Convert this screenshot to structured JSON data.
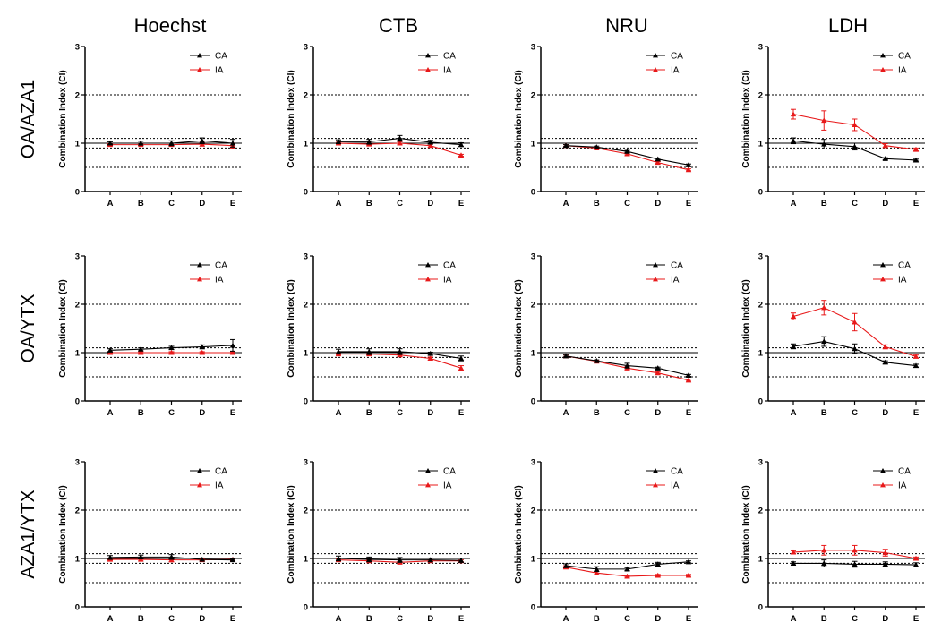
{
  "figure": {
    "col_titles": [
      "Hoechst",
      "CTB",
      "NRU",
      "LDH"
    ],
    "row_titles": [
      "OA/AZA1",
      "OA/YTX",
      "AZA1/YTX"
    ]
  },
  "colors": {
    "CA": "#000000",
    "IA": "#e8191a",
    "reference": "#000000"
  },
  "chart_data": [
    {
      "type": "line",
      "row": "OA/AZA1",
      "column": "Hoechst",
      "categories": [
        "A",
        "B",
        "C",
        "D",
        "E"
      ],
      "ylabel": "Combination Index (CI)",
      "ylim": [
        0,
        3
      ],
      "yticks": [
        0,
        1,
        2,
        3
      ],
      "reference_lines": {
        "solid": [
          1.0
        ],
        "dotted": [
          0.5,
          0.9,
          1.1,
          2.0
        ]
      },
      "legend": "top-right",
      "series": [
        {
          "name": "CA",
          "marker": "triangle",
          "values": [
            1.0,
            1.0,
            1.0,
            1.05,
            1.0
          ],
          "errors": [
            0.03,
            0.04,
            0.05,
            0.06,
            0.08
          ]
        },
        {
          "name": "IA",
          "marker": "triangle",
          "values": [
            0.97,
            0.97,
            0.97,
            0.98,
            0.95
          ],
          "errors": [
            0.02,
            0.02,
            0.03,
            0.04,
            0.05
          ]
        }
      ]
    },
    {
      "type": "line",
      "row": "OA/AZA1",
      "column": "CTB",
      "categories": [
        "A",
        "B",
        "C",
        "D",
        "E"
      ],
      "ylabel": "Combination Index (CI)",
      "ylim": [
        0,
        3
      ],
      "yticks": [
        0,
        1,
        2,
        3
      ],
      "reference_lines": {
        "solid": [
          1.0
        ],
        "dotted": [
          0.5,
          0.9,
          1.1,
          2.0
        ]
      },
      "legend": "top-right",
      "series": [
        {
          "name": "CA",
          "marker": "triangle",
          "values": [
            1.03,
            1.03,
            1.1,
            1.02,
            0.97
          ],
          "errors": [
            0.04,
            0.05,
            0.06,
            0.04,
            0.04
          ]
        },
        {
          "name": "IA",
          "marker": "triangle",
          "values": [
            1.0,
            0.98,
            1.0,
            0.95,
            0.75
          ],
          "errors": [
            0.02,
            0.02,
            0.03,
            0.03,
            0.02
          ]
        }
      ]
    },
    {
      "type": "line",
      "row": "OA/AZA1",
      "column": "NRU",
      "categories": [
        "A",
        "B",
        "C",
        "D",
        "E"
      ],
      "ylabel": "Combination Index (CI)",
      "ylim": [
        0,
        3
      ],
      "yticks": [
        0,
        1,
        2,
        3
      ],
      "reference_lines": {
        "solid": [
          1.0
        ],
        "dotted": [
          0.5,
          0.9,
          1.1,
          2.0
        ]
      },
      "legend": "top-right",
      "series": [
        {
          "name": "CA",
          "marker": "triangle",
          "values": [
            0.95,
            0.92,
            0.83,
            0.67,
            0.55
          ],
          "errors": [
            0.02,
            0.02,
            0.02,
            0.02,
            0.02
          ]
        },
        {
          "name": "IA",
          "marker": "triangle",
          "values": [
            0.95,
            0.9,
            0.78,
            0.6,
            0.45
          ],
          "errors": [
            0.02,
            0.02,
            0.02,
            0.02,
            0.02
          ]
        }
      ]
    },
    {
      "type": "line",
      "row": "OA/AZA1",
      "column": "LDH",
      "categories": [
        "A",
        "B",
        "C",
        "D",
        "E"
      ],
      "ylabel": "Combination Index (CI)",
      "ylim": [
        0,
        3
      ],
      "yticks": [
        0,
        1,
        2,
        3
      ],
      "reference_lines": {
        "solid": [
          1.0
        ],
        "dotted": [
          0.5,
          0.9,
          1.1,
          2.0
        ]
      },
      "legend": "top-right",
      "series": [
        {
          "name": "CA",
          "marker": "triangle",
          "values": [
            1.05,
            0.98,
            0.93,
            0.68,
            0.65
          ],
          "errors": [
            0.06,
            0.1,
            0.07,
            0.02,
            0.02
          ]
        },
        {
          "name": "IA",
          "marker": "triangle",
          "values": [
            1.6,
            1.47,
            1.38,
            0.95,
            0.87
          ],
          "errors": [
            0.1,
            0.2,
            0.12,
            0.04,
            0.03
          ]
        }
      ]
    },
    {
      "type": "line",
      "row": "OA/YTX",
      "column": "Hoechst",
      "categories": [
        "A",
        "B",
        "C",
        "D",
        "E"
      ],
      "ylabel": "Combination Index (CI)",
      "ylim": [
        0,
        3
      ],
      "yticks": [
        0,
        1,
        2,
        3
      ],
      "reference_lines": {
        "solid": [
          1.0
        ],
        "dotted": [
          0.5,
          0.9,
          1.1,
          2.0
        ]
      },
      "legend": "top-right",
      "series": [
        {
          "name": "CA",
          "marker": "triangle",
          "values": [
            1.05,
            1.07,
            1.1,
            1.12,
            1.15
          ],
          "errors": [
            0.03,
            0.03,
            0.03,
            0.04,
            0.12
          ]
        },
        {
          "name": "IA",
          "marker": "triangle",
          "values": [
            1.0,
            1.0,
            1.0,
            1.0,
            1.0
          ],
          "errors": [
            0.02,
            0.02,
            0.02,
            0.02,
            0.02
          ]
        }
      ]
    },
    {
      "type": "line",
      "row": "OA/YTX",
      "column": "CTB",
      "categories": [
        "A",
        "B",
        "C",
        "D",
        "E"
      ],
      "ylabel": "Combination Index (CI)",
      "ylim": [
        0,
        3
      ],
      "yticks": [
        0,
        1,
        2,
        3
      ],
      "reference_lines": {
        "solid": [
          1.0
        ],
        "dotted": [
          0.5,
          0.9,
          1.1,
          2.0
        ]
      },
      "legend": "top-right",
      "series": [
        {
          "name": "CA",
          "marker": "triangle",
          "values": [
            1.02,
            1.02,
            1.02,
            0.98,
            0.88
          ],
          "errors": [
            0.05,
            0.06,
            0.06,
            0.03,
            0.05
          ]
        },
        {
          "name": "IA",
          "marker": "triangle",
          "values": [
            0.97,
            0.97,
            0.95,
            0.88,
            0.68
          ],
          "errors": [
            0.02,
            0.02,
            0.03,
            0.03,
            0.05
          ]
        }
      ]
    },
    {
      "type": "line",
      "row": "OA/YTX",
      "column": "NRU",
      "categories": [
        "A",
        "B",
        "C",
        "D",
        "E"
      ],
      "ylabel": "Combination Index (CI)",
      "ylim": [
        0,
        3
      ],
      "yticks": [
        0,
        1,
        2,
        3
      ],
      "reference_lines": {
        "solid": [
          1.0
        ],
        "dotted": [
          0.5,
          0.9,
          1.1,
          2.0
        ]
      },
      "legend": "top-right",
      "series": [
        {
          "name": "CA",
          "marker": "triangle",
          "values": [
            0.93,
            0.83,
            0.73,
            0.68,
            0.53
          ],
          "errors": [
            0.02,
            0.02,
            0.05,
            0.02,
            0.02
          ]
        },
        {
          "name": "IA",
          "marker": "triangle",
          "values": [
            0.93,
            0.82,
            0.68,
            0.58,
            0.43
          ],
          "errors": [
            0.02,
            0.02,
            0.03,
            0.02,
            0.02
          ]
        }
      ]
    },
    {
      "type": "line",
      "row": "OA/YTX",
      "column": "LDH",
      "categories": [
        "A",
        "B",
        "C",
        "D",
        "E"
      ],
      "ylabel": "Combination Index (CI)",
      "ylim": [
        0,
        3
      ],
      "yticks": [
        0,
        1,
        2,
        3
      ],
      "reference_lines": {
        "solid": [
          1.0
        ],
        "dotted": [
          0.5,
          0.9,
          1.1,
          2.0
        ]
      },
      "legend": "top-right",
      "series": [
        {
          "name": "CA",
          "marker": "triangle",
          "values": [
            1.13,
            1.23,
            1.08,
            0.8,
            0.73
          ],
          "errors": [
            0.05,
            0.1,
            0.1,
            0.03,
            0.03
          ]
        },
        {
          "name": "IA",
          "marker": "triangle",
          "values": [
            1.75,
            1.93,
            1.63,
            1.12,
            0.92
          ],
          "errors": [
            0.07,
            0.15,
            0.18,
            0.04,
            0.03
          ]
        }
      ]
    },
    {
      "type": "line",
      "row": "AZA1/YTX",
      "column": "Hoechst",
      "categories": [
        "A",
        "B",
        "C",
        "D",
        "E"
      ],
      "ylabel": "Combination Index (CI)",
      "ylim": [
        0,
        3
      ],
      "yticks": [
        0,
        1,
        2,
        3
      ],
      "reference_lines": {
        "solid": [
          1.0
        ],
        "dotted": [
          0.5,
          0.9,
          1.1,
          2.0
        ]
      },
      "legend": "top-right",
      "series": [
        {
          "name": "CA",
          "marker": "triangle",
          "values": [
            1.02,
            1.03,
            1.03,
            0.98,
            0.97
          ],
          "errors": [
            0.04,
            0.04,
            0.05,
            0.03,
            0.02
          ]
        },
        {
          "name": "IA",
          "marker": "triangle",
          "values": [
            0.98,
            0.98,
            0.97,
            0.97,
            0.98
          ],
          "errors": [
            0.02,
            0.03,
            0.04,
            0.02,
            0.02
          ]
        }
      ]
    },
    {
      "type": "line",
      "row": "AZA1/YTX",
      "column": "CTB",
      "categories": [
        "A",
        "B",
        "C",
        "D",
        "E"
      ],
      "ylabel": "Combination Index (CI)",
      "ylim": [
        0,
        3
      ],
      "yticks": [
        0,
        1,
        2,
        3
      ],
      "reference_lines": {
        "solid": [
          1.0
        ],
        "dotted": [
          0.5,
          0.9,
          1.1,
          2.0
        ]
      },
      "legend": "top-right",
      "series": [
        {
          "name": "CA",
          "marker": "triangle",
          "values": [
            1.0,
            0.98,
            0.97,
            0.97,
            0.96
          ],
          "errors": [
            0.05,
            0.05,
            0.05,
            0.04,
            0.04
          ]
        },
        {
          "name": "IA",
          "marker": "triangle",
          "values": [
            0.97,
            0.95,
            0.92,
            0.95,
            0.95
          ],
          "errors": [
            0.02,
            0.02,
            0.02,
            0.02,
            0.02
          ]
        }
      ]
    },
    {
      "type": "line",
      "row": "AZA1/YTX",
      "column": "NRU",
      "categories": [
        "A",
        "B",
        "C",
        "D",
        "E"
      ],
      "ylabel": "Combination Index (CI)",
      "ylim": [
        0,
        3
      ],
      "yticks": [
        0,
        1,
        2,
        3
      ],
      "reference_lines": {
        "solid": [
          1.0
        ],
        "dotted": [
          0.5,
          0.9,
          1.1,
          2.0
        ]
      },
      "legend": "top-right",
      "series": [
        {
          "name": "CA",
          "marker": "triangle",
          "values": [
            0.85,
            0.78,
            0.78,
            0.88,
            0.93
          ],
          "errors": [
            0.04,
            0.05,
            0.03,
            0.04,
            0.02
          ]
        },
        {
          "name": "IA",
          "marker": "triangle",
          "values": [
            0.82,
            0.7,
            0.63,
            0.65,
            0.65
          ],
          "errors": [
            0.03,
            0.03,
            0.02,
            0.02,
            0.02
          ]
        }
      ]
    },
    {
      "type": "line",
      "row": "AZA1/YTX",
      "column": "LDH",
      "categories": [
        "A",
        "B",
        "C",
        "D",
        "E"
      ],
      "ylabel": "Combination Index (CI)",
      "ylim": [
        0,
        3
      ],
      "yticks": [
        0,
        1,
        2,
        3
      ],
      "reference_lines": {
        "solid": [
          1.0
        ],
        "dotted": [
          0.5,
          0.9,
          1.1,
          2.0
        ]
      },
      "legend": "top-right",
      "series": [
        {
          "name": "CA",
          "marker": "triangle",
          "values": [
            0.9,
            0.9,
            0.88,
            0.88,
            0.87
          ],
          "errors": [
            0.03,
            0.07,
            0.06,
            0.05,
            0.04
          ]
        },
        {
          "name": "IA",
          "marker": "triangle",
          "values": [
            1.13,
            1.17,
            1.17,
            1.12,
            1.0
          ],
          "errors": [
            0.03,
            0.1,
            0.1,
            0.07,
            0.03
          ]
        }
      ]
    }
  ]
}
